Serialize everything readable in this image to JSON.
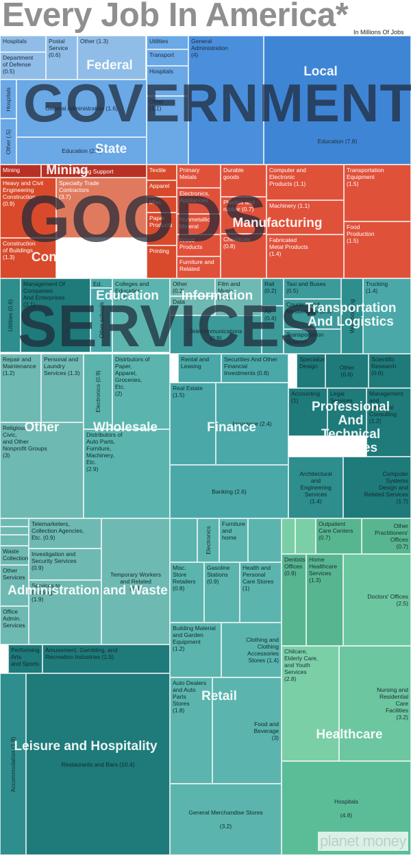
{
  "title": "Every Job In America*",
  "subtitle": "In Millions Of Jobs",
  "brand": "planet money",
  "big_labels": [
    "GOVERNMENT",
    "GOODS",
    "SERVICES"
  ],
  "colors": {
    "government": [
      "#8fbde8",
      "#6aa8e6",
      "#4a8fdc"
    ],
    "goods": [
      "#e0513a",
      "#d84a2b",
      "#b83023",
      "#e07a5e"
    ],
    "services_teal": [
      "#4aa8a8",
      "#2e8d8d",
      "#1f7a7a"
    ],
    "services_green": [
      "#6cc69f",
      "#57b68f",
      "#5bbd98"
    ]
  },
  "chart_data": {
    "type": "treemap",
    "title": "Every Job In America*",
    "subtitle": "In Millions Of Jobs",
    "sectors": [
      {
        "name": "Federal",
        "items": [
          {
            "name": "Hospitals"
          },
          {
            "name": "Department of Defense",
            "value": 0.5
          },
          {
            "name": "Postal Service",
            "value": 0.6
          },
          {
            "name": "Other",
            "value": 1.3
          }
        ]
      },
      {
        "name": "State",
        "items": [
          {
            "name": "Hospitals"
          },
          {
            "name": "General Administration",
            "value": 1.6
          },
          {
            "name": "Other",
            "value": 0.5
          },
          {
            "name": "Education",
            "value": 2.4
          },
          {
            "name": "Utilities"
          },
          {
            "name": "Transport"
          },
          {
            "name": "Hospitals"
          },
          {
            "name": "Other",
            "value": 1.1
          }
        ]
      },
      {
        "name": "Local",
        "items": [
          {
            "name": "General Administration",
            "value": 4
          },
          {
            "name": "Education",
            "value": 7.8
          }
        ]
      },
      {
        "name": "Mining",
        "items": [
          {
            "name": "Mining"
          },
          {
            "name": "Mining Support"
          }
        ]
      },
      {
        "name": "Construction",
        "items": [
          {
            "name": "Heavy and Civil Engineering Construction",
            "value": 0.9
          },
          {
            "name": "Specialty Trade Contractors",
            "value": 3.7
          },
          {
            "name": "Construction of Buildings",
            "value": 1.3
          }
        ]
      },
      {
        "name": "Manufacturing",
        "items": [
          {
            "name": "Textile"
          },
          {
            "name": "Apparel"
          },
          {
            "name": "Misc."
          },
          {
            "name": "Paper Products"
          },
          {
            "name": "Printing"
          },
          {
            "name": "Primary Metals"
          },
          {
            "name": "Electronics, Appliances"
          },
          {
            "name": "Nonmetallic Mineral"
          },
          {
            "name": "Wood Products"
          },
          {
            "name": "Furniture and Related"
          },
          {
            "name": "Durable goods"
          },
          {
            "name": "Plastics and rubber",
            "value": 0.7
          },
          {
            "name": "Chemicals",
            "value": 0.8
          },
          {
            "name": "Computer and Electronic Products",
            "value": 1.1
          },
          {
            "name": "Machinery",
            "value": 1.1
          },
          {
            "name": "Fabricated Metal Products",
            "value": 1.4
          },
          {
            "name": "Transportation Equipment",
            "value": 1.5
          },
          {
            "name": "Food Production",
            "value": 1.5
          }
        ]
      },
      {
        "name": "Education",
        "items": [
          {
            "name": "Utilities",
            "value": 0.6
          },
          {
            "name": "Management Of Companies And Enterprises",
            "value": 2.1
          },
          {
            "name": "Ed. support"
          },
          {
            "name": "Other schools"
          },
          {
            "name": "Colleges and Education",
            "value": 1.7
          }
        ]
      },
      {
        "name": "Information",
        "items": [
          {
            "name": "Other",
            "value": 0.2
          },
          {
            "name": "Data"
          },
          {
            "name": "Film and Music",
            "value": 0.3
          },
          {
            "name": "Telecommunications",
            "value": 0.9
          }
        ]
      },
      {
        "name": "Transportation And Logistics",
        "items": [
          {
            "name": "Rail",
            "value": 0.2
          },
          {
            "name": "Air",
            "value": 0.4
          },
          {
            "name": "Taxi and Buses",
            "value": 0.5
          },
          {
            "name": "Couriers and Messengers",
            "value": 0.5
          },
          {
            "name": "Transportation Support"
          },
          {
            "name": "Warehousing"
          },
          {
            "name": "Trucking",
            "value": 1.4
          }
        ]
      },
      {
        "name": "Other",
        "items": [
          {
            "name": "Repair and Maintenance",
            "value": 1.2
          },
          {
            "name": "Personal and Laundry Services",
            "value": 1.3
          },
          {
            "name": "Religious, Civic, and Other Nonprofit Groups",
            "value": 3
          }
        ]
      },
      {
        "name": "Wholesale",
        "items": [
          {
            "name": "Electronics",
            "value": 0.9
          },
          {
            "name": "Distrbutors of Paper, Apparel, Groceries, Etc.",
            "value": 2
          },
          {
            "name": "Distributors of Auto Parts, Furniture, Machinery, Etc.",
            "value": 2.9
          }
        ]
      },
      {
        "name": "Finance",
        "items": [
          {
            "name": "Rental and Leasing"
          },
          {
            "name": "Securities And Other Financial Investments",
            "value": 0.8
          },
          {
            "name": "Real Estate",
            "value": 1.5
          },
          {
            "name": "Insurance",
            "value": 2.4
          },
          {
            "name": "Banking",
            "value": 2.6
          }
        ]
      },
      {
        "name": "Professional And Technical Services",
        "items": [
          {
            "name": "Specialized Design"
          },
          {
            "name": "Other",
            "value": 0.6
          },
          {
            "name": "Scientific Research",
            "value": 0.6
          },
          {
            "name": "Accounting",
            "value": 1
          },
          {
            "name": "Legal Services"
          },
          {
            "name": "Management and Technical Consulting",
            "value": 1.2
          },
          {
            "name": "Architectural and Engineering Services",
            "value": 1.4
          },
          {
            "name": "Computer Systems Design and Related Services",
            "value": 1.7
          }
        ]
      },
      {
        "name": "Administration and Waste",
        "items": [
          {
            "name": "Telemarketers, Collection Agencies, Etc.",
            "value": 0.9
          },
          {
            "name": "Investigation and Security Services",
            "value": 0.9
          },
          {
            "name": "Temporary Workers and Related",
            "value": 3.4
          },
          {
            "name": "Waste Collection"
          },
          {
            "name": "Other Services"
          },
          {
            "name": "Services to Buildings",
            "value": 1.9
          },
          {
            "name": "Office Admin. Services"
          }
        ]
      },
      {
        "name": "Leisure and Hospitality",
        "items": [
          {
            "name": "Performing Arts and Sports"
          },
          {
            "name": "Amusement, Gambling, and Recreation Industries",
            "value": 1.5
          },
          {
            "name": "Accommodation",
            "value": 1.8
          },
          {
            "name": "Restaurants and Bars",
            "value": 10.4
          }
        ]
      },
      {
        "name": "Retail",
        "items": [
          {
            "name": "Electronics"
          },
          {
            "name": "Furniture and home"
          },
          {
            "name": "Misc. Store Retailers",
            "value": 0.8
          },
          {
            "name": "Gasoline Stations",
            "value": 0.9
          },
          {
            "name": "Health and Personal Care Stores",
            "value": 1
          },
          {
            "name": "Building Material and Garden Equipment",
            "value": 1.2
          },
          {
            "name": "Clothing and Clothing Accessories Stores",
            "value": 1.4
          },
          {
            "name": "Auto Dealers and Auto Parts Stores",
            "value": 1.8
          },
          {
            "name": "Food and Beverage",
            "value": 3
          },
          {
            "name": "General Merchandise Stores",
            "value": 3.2
          }
        ]
      },
      {
        "name": "Healthcare",
        "items": [
          {
            "name": "Outpatient Care Centers",
            "value": 0.7
          },
          {
            "name": "Other Practitioners' Offices",
            "value": 0.7
          },
          {
            "name": "Dentists' Offices",
            "value": 0.9
          },
          {
            "name": "Home Healthcare Services",
            "value": 1.3
          },
          {
            "name": "Doctors' Offices",
            "value": 2.5
          },
          {
            "name": "Chilcare, Elderly Care, and Youth Services",
            "value": 2.8
          },
          {
            "name": "Nursing and Residential Care Facilities",
            "value": 3.2
          },
          {
            "name": "Hospitals",
            "value": 4.8
          }
        ]
      }
    ],
    "cells": [
      {
        "t": "Hospitals"
      },
      {
        "t": "Department\nof Defense (0.5)"
      },
      {
        "t": "Postal\nService\n(0.6)"
      },
      {
        "t": "Other (1.3)"
      },
      {
        "t": "Hospitals"
      },
      {
        "t": "General Administration (1.6)"
      },
      {
        "t": "Other (.5)"
      },
      {
        "t": "Education (2.4)"
      },
      {
        "t": "Utilities"
      },
      {
        "t": "Transport"
      },
      {
        "t": "Hospitals"
      },
      {
        "t": "Other\n(1.1)"
      },
      {
        "t": "General\nAdministration\n(4)"
      },
      {
        "t": "Education (7.8)"
      },
      {
        "t": "Mining"
      },
      {
        "t": "Mining Support"
      },
      {
        "t": "Heavy and Civil\nEngineering\nConstruction\n(0.9)"
      },
      {
        "t": "Specialty Trade\nContractors\n(3.7)"
      },
      {
        "t": "Construction\nof Buildings\n(1.3)"
      },
      {
        "t": "Textile"
      },
      {
        "t": "Apparel"
      },
      {
        "t": "Misc."
      },
      {
        "t": "Paper\nProducts"
      },
      {
        "t": "Printing"
      },
      {
        "t": "Primary\nMetals"
      },
      {
        "t": "Electronics,\nAppliances"
      },
      {
        "t": "Nonmetallic\nMineral"
      },
      {
        "t": "Wood\nProducts"
      },
      {
        "t": "Furniture and\nRelated"
      },
      {
        "t": "Durable\ngoods"
      },
      {
        "t": "Plastics and\nrubber (0.7)"
      },
      {
        "t": "Chemicals\n(0.8)"
      },
      {
        "t": "Computer and\nElectronic\nProducts (1.1)"
      },
      {
        "t": "Machinery (1.1)"
      },
      {
        "t": "Fabricated\nMetal Products\n(1.4)"
      },
      {
        "t": "Transportation\nEquipment\n(1.5)"
      },
      {
        "t": "Food\nProduction\n(1.5)"
      },
      {
        "t": "Utilities (0.6)"
      },
      {
        "t": "Management Of\nCompanies\nAnd Enterprises\n(2.1)"
      },
      {
        "t": "Ed. support"
      },
      {
        "t": "Other schools"
      },
      {
        "t": "Colleges and\nEducation\n(1.7)"
      },
      {
        "t": "Other\n(0.2)"
      },
      {
        "t": "Data"
      },
      {
        "t": "Film and\nMusic\n(0.3)"
      },
      {
        "t": "Telecommunications\n(0.9)"
      },
      {
        "t": "Rail\n(0.2)"
      },
      {
        "t": "Air\n(0.4)"
      },
      {
        "t": "Taxi and Buses\n(0.5)"
      },
      {
        "t": "Couriers and\nMessengers (0.5)"
      },
      {
        "t": "Transportation\nSupport"
      },
      {
        "t": "Warehousing"
      },
      {
        "t": "Trucking\n(1.4)"
      },
      {
        "t": "Repair and\nMaintenance\n(1.2)"
      },
      {
        "t": "Personal and\nLaundry\nServices (1.3)"
      },
      {
        "t": "Religious,\nCivic,\nand Other\nNonprofit Groups\n(3)"
      },
      {
        "t": "Electronics\n(0.9)"
      },
      {
        "t": "Distrbutors of\nPaper,\nApparel,\nGroceries,\nEtc.\n(2)"
      },
      {
        "t": "Distributors of\nAuto Parts,\nFurniture,\nMachinery,\nEtc.\n(2.9)"
      },
      {
        "t": "Rental and\nLeasing"
      },
      {
        "t": "Securities And Other\nFinancial\nInvestments (0.8)"
      },
      {
        "t": "Real Estate\n(1.5)"
      },
      {
        "t": "Insurance (2.4)"
      },
      {
        "t": "Banking (2.6)"
      },
      {
        "t": "Specialized\nDesign"
      },
      {
        "t": "Other\n(0.6)"
      },
      {
        "t": "Scientific\nResearch\n(0.6)"
      },
      {
        "t": "Accounting\n(1)"
      },
      {
        "t": "Legal\nServices"
      },
      {
        "t": "Management\nand\nTechnical\nConsulting\n(1.2)"
      },
      {
        "t": "Architectural\nand\nEngineering\nServices\n(1.4)"
      },
      {
        "t": "Computer\nSystems\nDesign and\nRelated Services\n(1.7)"
      },
      {
        "t": ""
      },
      {
        "t": ""
      },
      {
        "t": ""
      },
      {
        "t": "Telemarketers,\nCollection Agencies,\nEtc. (0.9)"
      },
      {
        "t": "Waste\nCollection"
      },
      {
        "t": "Investigation and\nSecurity Services\n(0.9)"
      },
      {
        "t": "Temporary Workers\nand Related\n(3.4)"
      },
      {
        "t": "Other\nServices"
      },
      {
        "t": "Services to\nBuildings\n(1.9)"
      },
      {
        "t": "Office\nAdmin.\nServices"
      },
      {
        "t": "Performing\nArts\nand Sports"
      },
      {
        "t": "Amusement, Gambling, and\nRecreation Industries (1.5)"
      },
      {
        "t": "Accommodation\n(1.8)"
      },
      {
        "t": "Restaurants and Bars (10.4)"
      },
      {
        "t": ""
      },
      {
        "t": "Electronics"
      },
      {
        "t": "Furniture\nand\nhome"
      },
      {
        "t": ""
      },
      {
        "t": "Misc.\nStore\nRetailers\n(0.8)"
      },
      {
        "t": "Gasoline\nStations\n(0.9)"
      },
      {
        "t": "Health and\nPersonal\nCare Stores\n(1)"
      },
      {
        "t": "Building Material\nand Garden\nEquipment\n(1.2)"
      },
      {
        "t": "Clothing and\nClothing\nAccessories\nStores (1.4)"
      },
      {
        "t": "Auto Dealers\nand Auto Parts\nStores\n(1.8)"
      },
      {
        "t": "Food and\nBeverage\n(3)"
      },
      {
        "t": "General Merchandise Stores\n\n(3.2)"
      },
      {
        "t": ""
      },
      {
        "t": ""
      },
      {
        "t": "Outpatient\nCare Centers\n(0.7)"
      },
      {
        "t": "Other\nPractitioners'\nOffices\n(0.7)"
      },
      {
        "t": "Dentists'\nOffices\n(0.9)"
      },
      {
        "t": "Home\nHealthcare\nServices\n(1.3)"
      },
      {
        "t": "Doctors' Offices\n(2.5)"
      },
      {
        "t": "Chilcare,\nElderly Care,\nand Youth\nServices\n(2.8)"
      },
      {
        "t": "Nursing and\nResidential\nCare\nFacilities\n(3.2)"
      },
      {
        "t": "Hospitals\n\n(4.8)"
      }
    ]
  }
}
